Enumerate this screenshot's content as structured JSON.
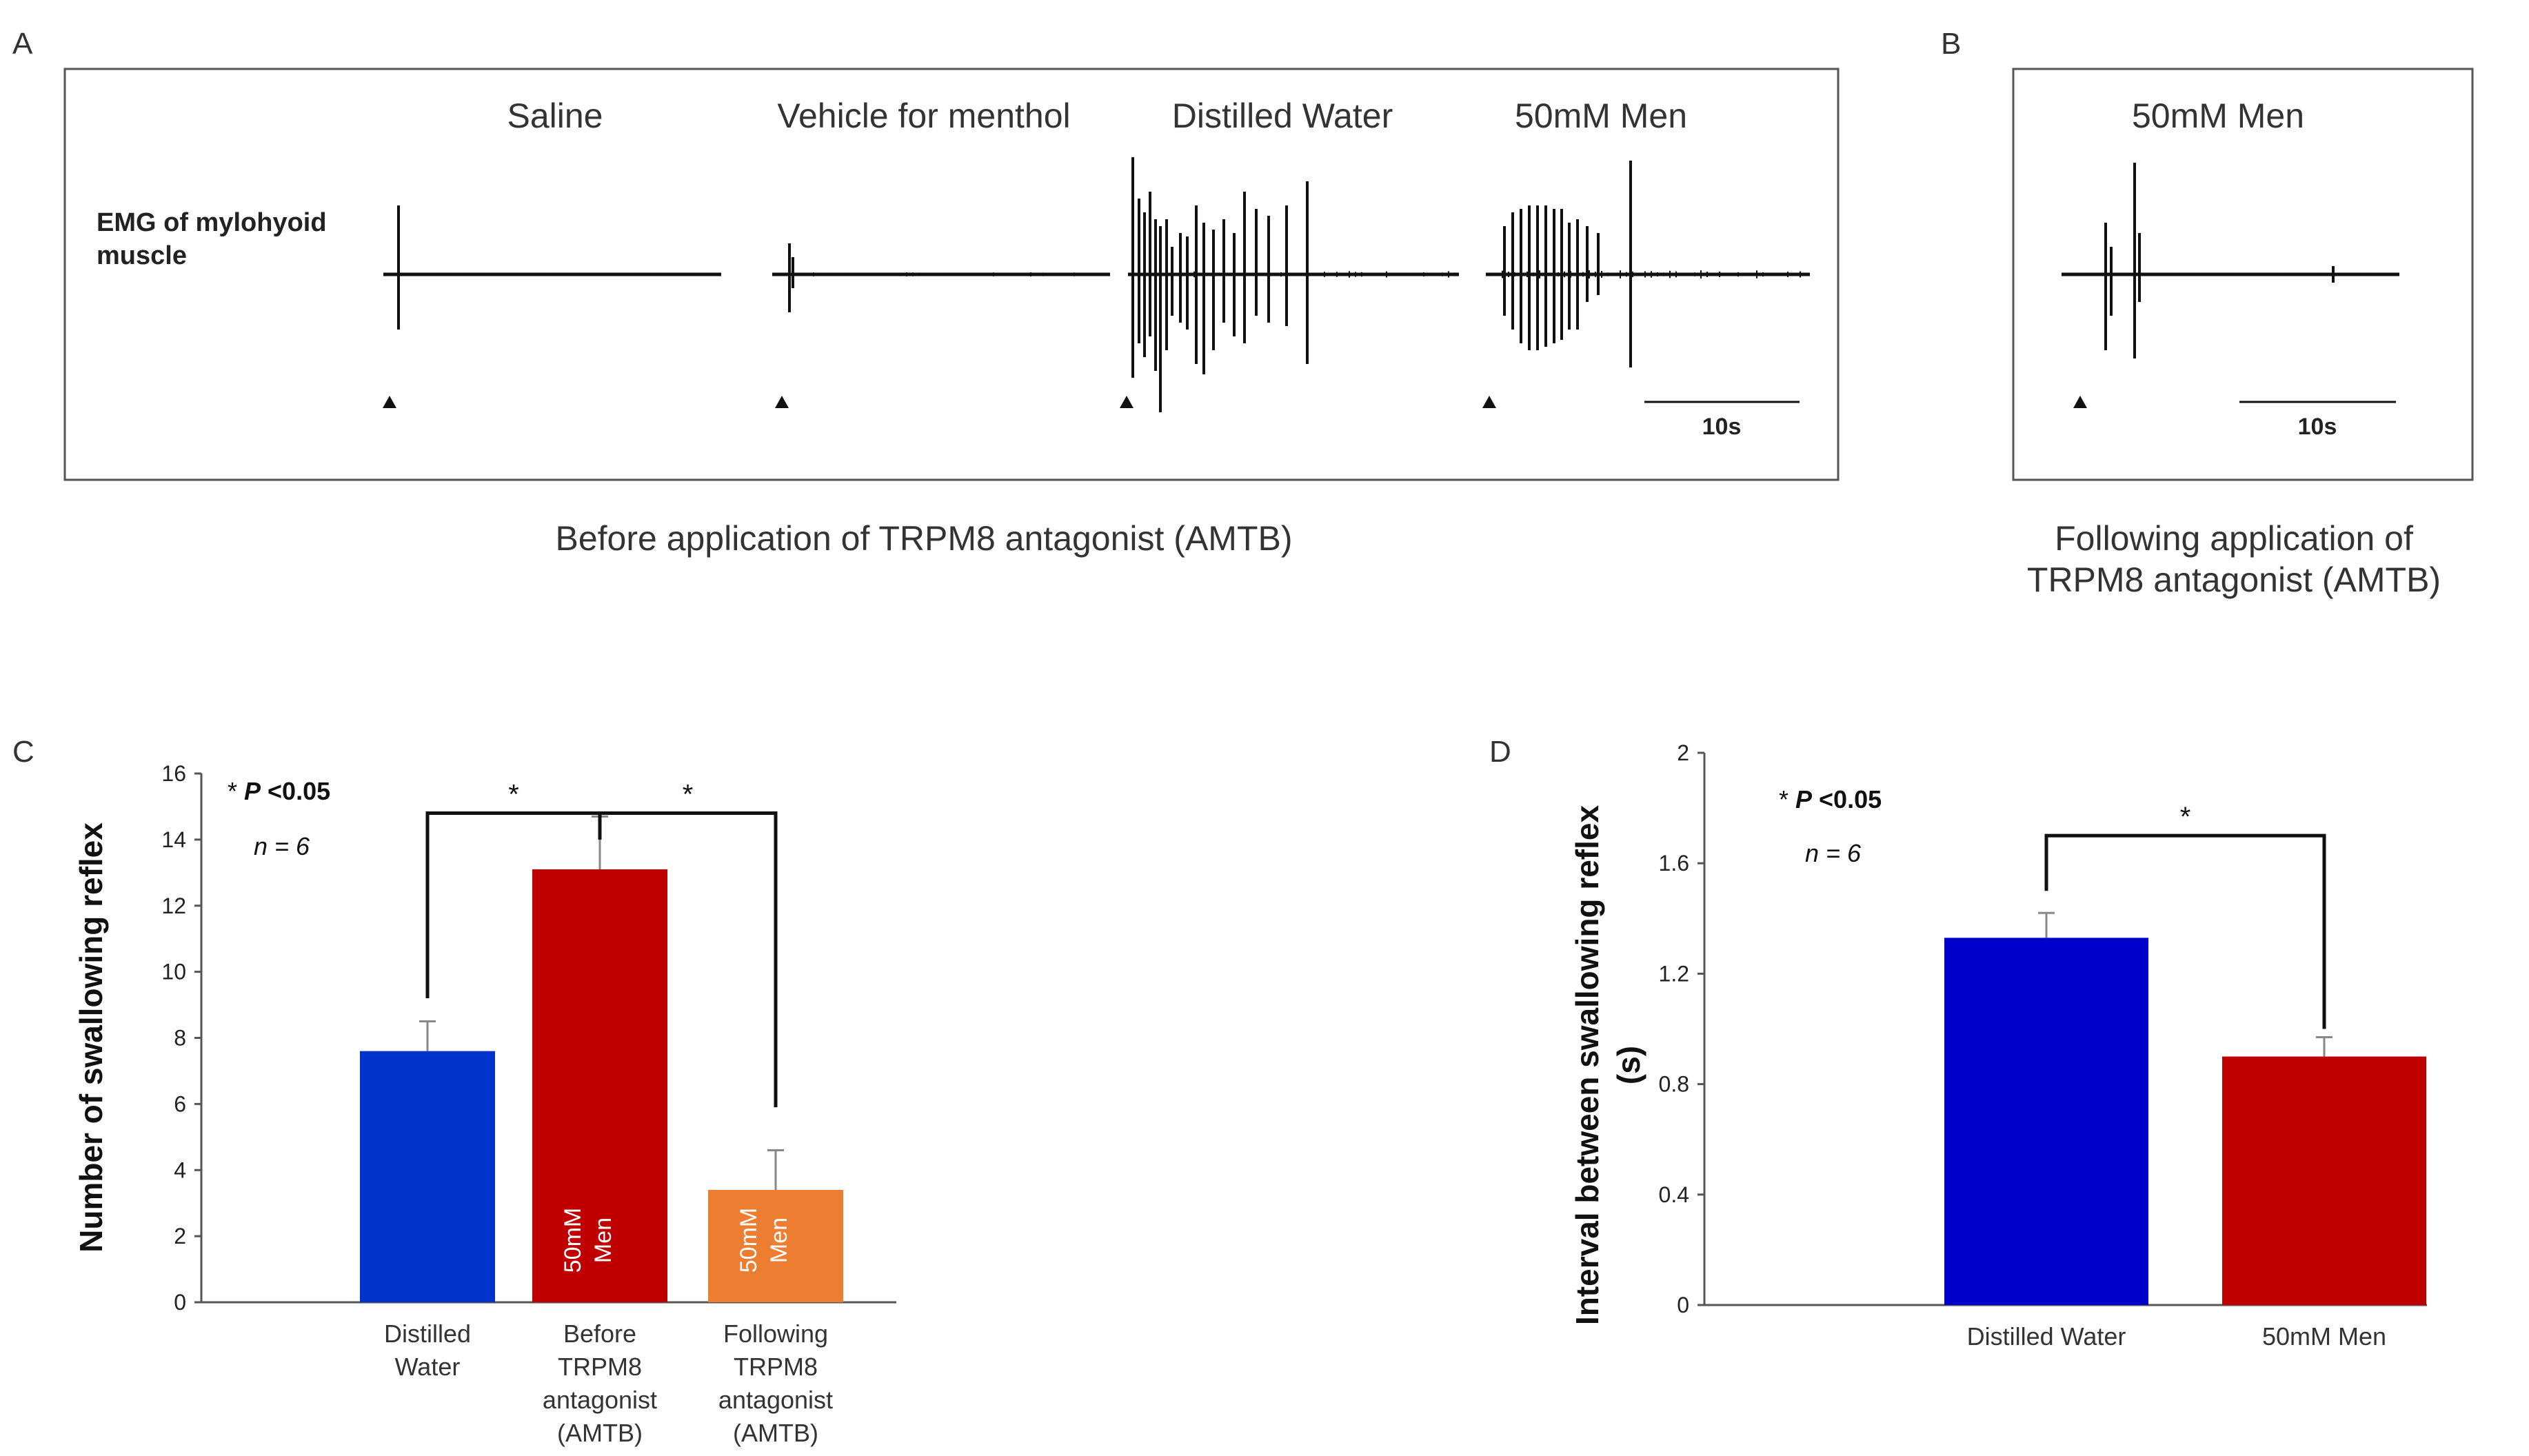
{
  "panel_a": {
    "letter": "A",
    "emg_label_line1": "EMG of mylohyoid",
    "emg_label_line2": "muscle",
    "conditions": [
      "Saline",
      "Vehicle for menthol",
      "Distilled Water",
      "50mM Men"
    ],
    "scale_bar": "10s",
    "caption": "Before application of TRPM8 antagonist (AMTB)"
  },
  "panel_b": {
    "letter": "B",
    "condition": "50mM Men",
    "scale_bar": "10s",
    "caption_line1": "Following application of",
    "caption_line2": "TRPM8 antagonist (AMTB)"
  },
  "chart_data": [
    {
      "panel": "C",
      "type": "bar",
      "ylabel": "Number of swallowing reflex",
      "ylim": [
        0,
        16
      ],
      "yticks": [
        0,
        2,
        4,
        6,
        8,
        10,
        12,
        14,
        16
      ],
      "categories": [
        [
          "Distilled",
          "Water"
        ],
        [
          "Before",
          "TRPM8",
          "antagonist",
          "(AMTB)"
        ],
        [
          "Following",
          "TRPM8",
          "antagonist",
          "(AMTB)"
        ]
      ],
      "values": [
        7.6,
        13.1,
        3.4
      ],
      "errors": [
        0.9,
        1.6,
        1.2
      ],
      "colors": [
        "#0033cc",
        "#c00000",
        "#ed7d31"
      ],
      "bar_text": [
        [
          "",
          ""
        ],
        [
          "50mM",
          "Men"
        ],
        [
          "50mM",
          "Men"
        ]
      ],
      "stat_text": "* P <0.05",
      "stat_p": "P",
      "n_text": "n = 6",
      "significance": [
        "*",
        "*"
      ]
    },
    {
      "panel": "D",
      "type": "bar",
      "ylabel_line1": "Interval between swallowing reflex",
      "ylabel_line2": "(s)",
      "ylim": [
        0,
        2
      ],
      "yticks": [
        0,
        0.4,
        0.8,
        1.2,
        1.6,
        2
      ],
      "categories": [
        "Distilled Water",
        "50mM Men"
      ],
      "values": [
        1.33,
        0.9
      ],
      "errors": [
        0.09,
        0.07
      ],
      "colors": [
        "#0000cc",
        "#c00000"
      ],
      "stat_text": "* P <0.05",
      "n_text": "n = 6",
      "significance": [
        "*"
      ]
    }
  ]
}
